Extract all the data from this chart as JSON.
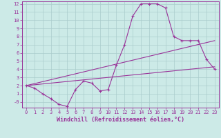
{
  "xlabel": "Windchill (Refroidissement éolien,°C)",
  "bg_color": "#cceae7",
  "grid_color": "#aacccc",
  "line_color": "#993399",
  "xlim": [
    -0.5,
    23.5
  ],
  "ylim": [
    -0.7,
    12.3
  ],
  "xtick_labels": [
    "0",
    "1",
    "2",
    "3",
    "4",
    "5",
    "6",
    "7",
    "8",
    "9",
    "10",
    "11",
    "12",
    "13",
    "14",
    "15",
    "16",
    "17",
    "18",
    "19",
    "20",
    "21",
    "22",
    "23"
  ],
  "ytick_labels": [
    "-0",
    "1",
    "2",
    "3",
    "4",
    "5",
    "6",
    "7",
    "8",
    "9",
    "10",
    "11",
    "12"
  ],
  "ytick_vals": [
    0,
    1,
    2,
    3,
    4,
    5,
    6,
    7,
    8,
    9,
    10,
    11,
    12
  ],
  "main_x": [
    0,
    1,
    2,
    3,
    4,
    5,
    6,
    7,
    8,
    9,
    10,
    11,
    12,
    13,
    14,
    15,
    16,
    17,
    18,
    19,
    20,
    21,
    22,
    23
  ],
  "main_y": [
    2.0,
    1.7,
    1.0,
    0.4,
    -0.3,
    -0.55,
    1.5,
    2.55,
    2.3,
    1.35,
    1.5,
    4.5,
    7.0,
    10.5,
    12.0,
    12.0,
    12.0,
    11.5,
    8.0,
    7.5,
    7.5,
    7.5,
    5.2,
    4.0
  ],
  "line1_x": [
    0,
    23
  ],
  "line1_y": [
    2.0,
    4.3
  ],
  "line2_x": [
    0,
    23
  ],
  "line2_y": [
    2.0,
    7.5
  ],
  "font_size_tick": 5,
  "font_size_xlabel": 6
}
